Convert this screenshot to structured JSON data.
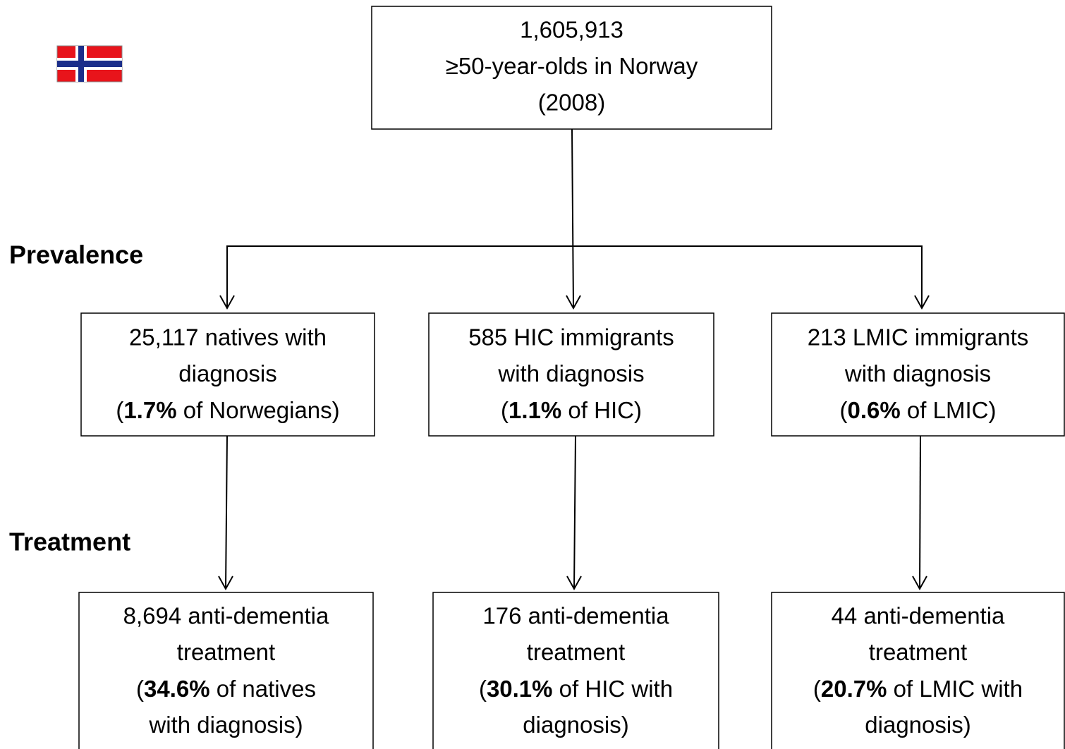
{
  "root": {
    "lines": [
      "1,605,913",
      "≥50-year-olds in Norway",
      "(2008)"
    ]
  },
  "stages": [
    "Prevalence",
    "Treatment"
  ],
  "prevalence": [
    {
      "lines": [
        "25,117 natives with",
        "diagnosis",
        {
          "pre": "(",
          "bold": "1.7%",
          "post": " of Norwegians)"
        }
      ]
    },
    {
      "lines": [
        "585 HIC immigrants",
        "with diagnosis",
        {
          "pre": "(",
          "bold": "1.1%",
          "post": " of HIC)"
        }
      ]
    },
    {
      "lines": [
        "213 LMIC immigrants",
        "with diagnosis",
        {
          "pre": "(",
          "bold": "0.6%",
          "post": " of LMIC)"
        }
      ]
    }
  ],
  "treatment": [
    {
      "lines": [
        "8,694 anti-dementia",
        "treatment",
        {
          "pre": "(",
          "bold": "34.6%",
          "post": " of natives"
        },
        "with diagnosis)"
      ]
    },
    {
      "lines": [
        "176 anti-dementia",
        "treatment",
        {
          "pre": "(",
          "bold": "30.1%",
          "post": " of HIC with"
        },
        "diagnosis)"
      ]
    },
    {
      "lines": [
        "44 anti-dementia",
        "treatment",
        {
          "pre": "(",
          "bold": "20.7%",
          "post": " of LMIC with"
        },
        "diagnosis)"
      ]
    }
  ]
}
